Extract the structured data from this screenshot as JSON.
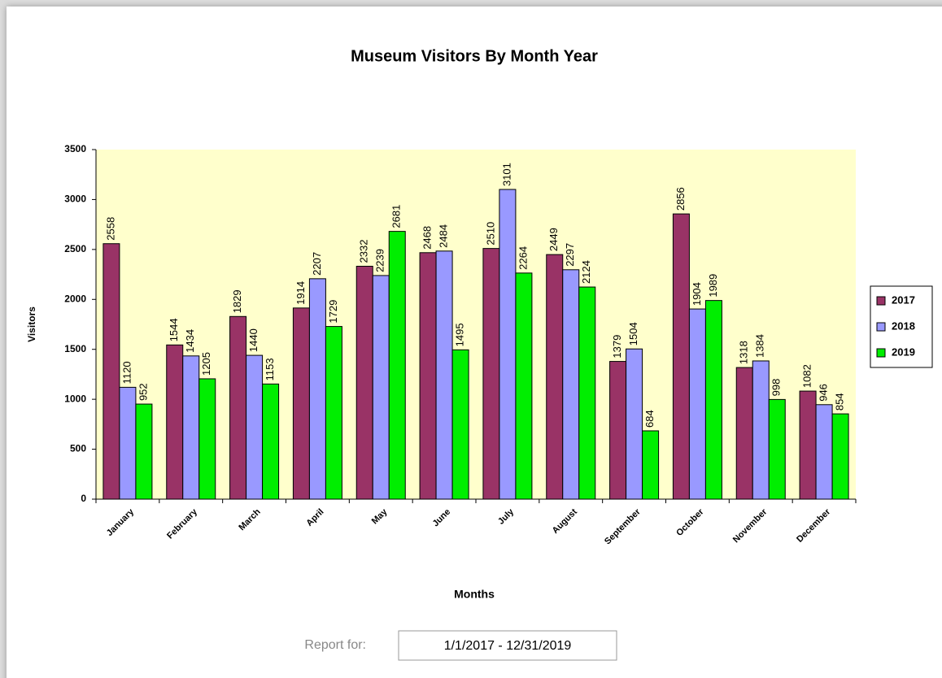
{
  "chart_data": {
    "type": "bar",
    "title": "Museum Visitors By Month Year",
    "x_label": "Months",
    "y_label": "Visitors",
    "categories": [
      "January",
      "February",
      "March",
      "April",
      "May",
      "June",
      "July",
      "August",
      "September",
      "October",
      "November",
      "December"
    ],
    "series": [
      {
        "name": "2017",
        "color": "#993366",
        "values": [
          2558,
          1544,
          1829,
          1914,
          2332,
          2468,
          2510,
          2449,
          1379,
          2856,
          1318,
          1082
        ]
      },
      {
        "name": "2018",
        "color": "#9999ff",
        "values": [
          1120,
          1434,
          1440,
          2207,
          2239,
          2484,
          3101,
          2297,
          1504,
          1904,
          1384,
          946
        ]
      },
      {
        "name": "2019",
        "color": "#00ee00",
        "values": [
          952,
          1205,
          1153,
          1729,
          2681,
          1495,
          2264,
          2124,
          684,
          1989,
          998,
          854
        ]
      }
    ],
    "ylim": [
      0,
      3500
    ],
    "yticks": [
      0,
      500,
      1000,
      1500,
      2000,
      2500,
      3000,
      3500
    ],
    "grid": false,
    "legend": "right",
    "plot_background": "#ffffcc"
  },
  "report": {
    "label": "Report for:",
    "range": "1/1/2017 - 12/31/2019"
  }
}
